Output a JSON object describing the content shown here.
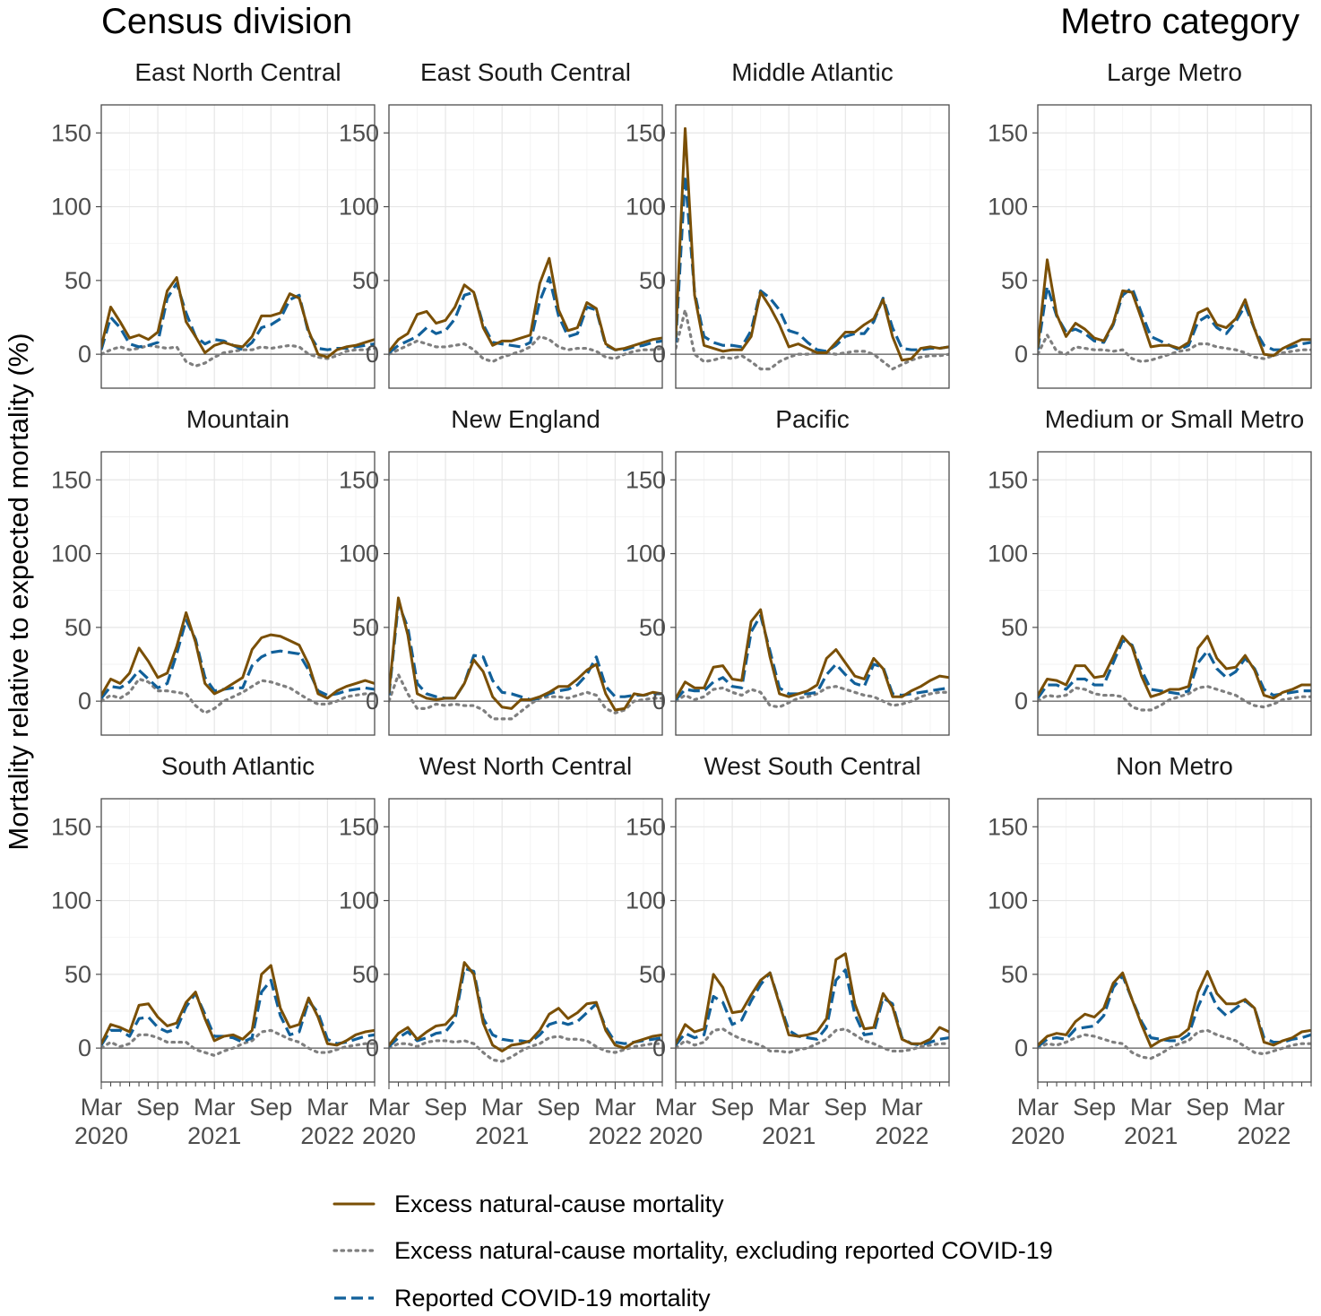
{
  "section_titles": {
    "left": "Census division",
    "right": "Metro category"
  },
  "y_axis_label": "Mortality relative to expected mortality (%)",
  "legend": [
    {
      "key": "excess",
      "label": "Excess natural-cause mortality"
    },
    {
      "key": "excl",
      "label": "Excess natural-cause mortality, excluding reported COVID-19"
    },
    {
      "key": "covid",
      "label": "Reported COVID-19 mortality"
    }
  ],
  "colors": {
    "excess": "#7a4f05",
    "excl": "#7f7f7f",
    "covid": "#11609a"
  },
  "chart_data": {
    "type": "line",
    "x_unit": "month",
    "x_start": "2020-03",
    "x_end": "2022-08",
    "x_ticks": [
      "Mar 2020",
      "Sep",
      "Mar 2021",
      "Sep",
      "Mar 2022"
    ],
    "x_tick_lines": [
      [
        "Mar",
        "2020"
      ],
      [
        "Sep",
        ""
      ],
      [
        "Mar",
        "2021"
      ],
      [
        "Sep",
        ""
      ],
      [
        "Mar",
        "2022"
      ]
    ],
    "ylim": [
      -23,
      169
    ],
    "y_ticks": [
      0,
      50,
      100,
      150
    ],
    "series_names": [
      "Excess natural-cause mortality",
      "Excess natural-cause mortality, excluding reported COVID-19",
      "Reported COVID-19 mortality"
    ],
    "panels": [
      {
        "group": "Census division",
        "title": "East North Central",
        "excess": [
          5,
          32,
          22,
          11,
          13,
          10,
          15,
          43,
          52,
          22,
          12,
          1,
          6,
          8,
          6,
          5,
          12,
          26,
          26,
          28,
          41,
          38,
          16,
          0,
          -2,
          3,
          5,
          6,
          8,
          10
        ],
        "excl": [
          0,
          3,
          5,
          3,
          4,
          6,
          5,
          4,
          5,
          -5,
          -8,
          -6,
          -2,
          1,
          2,
          3,
          3,
          5,
          4,
          5,
          6,
          5,
          0,
          -2,
          -3,
          -1,
          2,
          3,
          3,
          4
        ],
        "covid": [
          3,
          25,
          18,
          7,
          5,
          6,
          8,
          38,
          48,
          28,
          12,
          7,
          10,
          9,
          6,
          3,
          8,
          18,
          20,
          24,
          37,
          40,
          14,
          4,
          3,
          4,
          4,
          5,
          6,
          7
        ]
      },
      {
        "group": "Census division",
        "title": "East South Central",
        "excess": [
          2,
          10,
          14,
          27,
          29,
          21,
          23,
          32,
          47,
          42,
          18,
          6,
          9,
          9,
          11,
          13,
          48,
          65,
          30,
          16,
          18,
          35,
          31,
          7,
          3,
          4,
          6,
          8,
          10,
          11
        ],
        "excl": [
          0,
          3,
          6,
          9,
          7,
          5,
          5,
          6,
          7,
          3,
          -3,
          -5,
          -2,
          0,
          2,
          5,
          12,
          10,
          5,
          3,
          4,
          4,
          2,
          -2,
          -3,
          0,
          2,
          3,
          3,
          4
        ],
        "covid": [
          1,
          6,
          9,
          12,
          18,
          14,
          16,
          24,
          40,
          42,
          20,
          8,
          7,
          6,
          5,
          8,
          36,
          52,
          26,
          12,
          14,
          32,
          30,
          6,
          3,
          3,
          5,
          6,
          8,
          9
        ]
      },
      {
        "group": "Census division",
        "title": "Middle Atlantic",
        "excess": [
          12,
          153,
          40,
          6,
          4,
          2,
          3,
          3,
          12,
          42,
          32,
          20,
          5,
          7,
          4,
          1,
          1,
          8,
          15,
          15,
          20,
          24,
          37,
          12,
          -4,
          -3,
          4,
          5,
          4,
          5
        ],
        "excl": [
          4,
          30,
          0,
          -5,
          -4,
          -2,
          -3,
          -1,
          -5,
          -10,
          -10,
          -5,
          -2,
          0,
          0,
          2,
          1,
          0,
          1,
          2,
          2,
          0,
          -5,
          -10,
          -7,
          -4,
          -2,
          -1,
          -1,
          0
        ],
        "covid": [
          8,
          121,
          42,
          12,
          8,
          6,
          6,
          5,
          16,
          43,
          38,
          30,
          16,
          14,
          8,
          3,
          2,
          6,
          12,
          14,
          14,
          22,
          38,
          18,
          4,
          3,
          3,
          4,
          4,
          5
        ]
      },
      {
        "group": "Metro category",
        "title": "Large Metro",
        "excess": [
          5,
          64,
          27,
          12,
          21,
          17,
          11,
          9,
          21,
          43,
          42,
          24,
          5,
          6,
          6,
          4,
          8,
          28,
          31,
          20,
          18,
          24,
          37,
          17,
          0,
          -1,
          4,
          7,
          10,
          10
        ],
        "excl": [
          0,
          13,
          2,
          0,
          5,
          4,
          3,
          3,
          2,
          3,
          -3,
          -5,
          -4,
          -2,
          0,
          2,
          3,
          7,
          7,
          5,
          4,
          3,
          1,
          -2,
          -3,
          -1,
          1,
          2,
          3,
          3
        ],
        "covid": [
          3,
          46,
          26,
          15,
          17,
          14,
          9,
          8,
          20,
          40,
          45,
          28,
          12,
          9,
          6,
          3,
          6,
          22,
          26,
          18,
          14,
          22,
          33,
          17,
          6,
          3,
          3,
          5,
          7,
          8
        ]
      },
      {
        "group": "Census division",
        "title": "Mountain",
        "excess": [
          4,
          15,
          12,
          19,
          36,
          27,
          16,
          19,
          37,
          60,
          40,
          12,
          5,
          8,
          12,
          16,
          35,
          43,
          45,
          44,
          41,
          38,
          25,
          5,
          2,
          7,
          10,
          12,
          14,
          12
        ],
        "excl": [
          0,
          4,
          2,
          6,
          15,
          13,
          7,
          7,
          6,
          5,
          -3,
          -8,
          -5,
          0,
          3,
          6,
          10,
          14,
          13,
          11,
          9,
          5,
          1,
          -2,
          -2,
          0,
          3,
          4,
          5,
          5
        ],
        "covid": [
          2,
          10,
          9,
          13,
          21,
          15,
          9,
          12,
          32,
          55,
          42,
          16,
          7,
          8,
          9,
          9,
          24,
          30,
          33,
          34,
          33,
          32,
          21,
          7,
          4,
          5,
          7,
          8,
          9,
          8
        ]
      },
      {
        "group": "Census division",
        "title": "New England",
        "excess": [
          6,
          70,
          45,
          5,
          2,
          1,
          2,
          2,
          12,
          28,
          20,
          3,
          -4,
          -5,
          1,
          1,
          3,
          6,
          10,
          10,
          15,
          21,
          25,
          5,
          -6,
          -5,
          5,
          4,
          6,
          5
        ],
        "excl": [
          0,
          18,
          5,
          -5,
          -5,
          -2,
          -3,
          -2,
          -3,
          -3,
          -6,
          -12,
          -12,
          -12,
          -7,
          -2,
          2,
          3,
          3,
          2,
          4,
          6,
          4,
          -5,
          -8,
          -6,
          0,
          1,
          2,
          2
        ],
        "covid": [
          4,
          66,
          50,
          12,
          5,
          3,
          2,
          2,
          12,
          31,
          30,
          14,
          6,
          5,
          3,
          1,
          2,
          5,
          7,
          8,
          11,
          18,
          30,
          10,
          3,
          3,
          4,
          4,
          5,
          5
        ]
      },
      {
        "group": "Census division",
        "title": "Pacific",
        "excess": [
          2,
          13,
          9,
          9,
          23,
          24,
          15,
          14,
          54,
          62,
          30,
          5,
          3,
          5,
          7,
          11,
          29,
          35,
          26,
          17,
          15,
          29,
          22,
          3,
          3,
          7,
          10,
          14,
          17,
          16
        ],
        "excl": [
          0,
          4,
          1,
          3,
          8,
          9,
          6,
          4,
          8,
          6,
          -3,
          -4,
          -1,
          2,
          3,
          5,
          9,
          10,
          8,
          6,
          4,
          3,
          0,
          -3,
          -2,
          0,
          3,
          5,
          6,
          6
        ],
        "covid": [
          1,
          8,
          7,
          7,
          13,
          16,
          10,
          9,
          47,
          58,
          34,
          9,
          5,
          5,
          5,
          6,
          18,
          25,
          18,
          12,
          10,
          25,
          23,
          5,
          4,
          5,
          6,
          7,
          8,
          9
        ]
      },
      {
        "group": "Metro category",
        "title": "Medium or Small Metro",
        "excess": [
          4,
          15,
          14,
          11,
          24,
          24,
          16,
          17,
          30,
          44,
          37,
          17,
          3,
          5,
          8,
          8,
          10,
          36,
          44,
          29,
          22,
          23,
          31,
          21,
          4,
          2,
          6,
          8,
          11,
          11
        ],
        "excl": [
          0,
          4,
          3,
          4,
          9,
          8,
          5,
          4,
          4,
          3,
          -4,
          -6,
          -6,
          -3,
          1,
          3,
          5,
          9,
          10,
          8,
          6,
          4,
          0,
          -3,
          -4,
          -2,
          1,
          2,
          3,
          3
        ],
        "covid": [
          2,
          11,
          11,
          8,
          15,
          15,
          11,
          11,
          26,
          41,
          38,
          21,
          8,
          7,
          6,
          5,
          7,
          26,
          34,
          22,
          16,
          20,
          29,
          22,
          8,
          4,
          5,
          6,
          7,
          7
        ]
      },
      {
        "group": "Census division",
        "title": "South Atlantic",
        "excess": [
          3,
          16,
          14,
          11,
          29,
          30,
          21,
          15,
          17,
          31,
          38,
          20,
          5,
          8,
          9,
          6,
          12,
          50,
          56,
          27,
          14,
          16,
          34,
          21,
          3,
          2,
          5,
          9,
          11,
          12
        ],
        "excl": [
          0,
          4,
          1,
          3,
          9,
          9,
          7,
          4,
          4,
          4,
          -1,
          -3,
          -5,
          -2,
          0,
          3,
          5,
          11,
          12,
          9,
          6,
          4,
          0,
          -3,
          -3,
          -1,
          1,
          2,
          3,
          3
        ],
        "covid": [
          2,
          12,
          12,
          8,
          20,
          21,
          14,
          11,
          13,
          28,
          37,
          23,
          8,
          8,
          7,
          4,
          7,
          38,
          46,
          22,
          9,
          11,
          32,
          24,
          6,
          3,
          4,
          6,
          8,
          9
        ]
      },
      {
        "group": "Census division",
        "title": "West North Central",
        "excess": [
          2,
          10,
          14,
          6,
          11,
          15,
          16,
          23,
          58,
          50,
          17,
          2,
          -2,
          2,
          3,
          5,
          12,
          23,
          27,
          20,
          24,
          30,
          31,
          12,
          2,
          0,
          4,
          6,
          8,
          9
        ],
        "excl": [
          0,
          3,
          3,
          1,
          4,
          5,
          5,
          4,
          5,
          3,
          -3,
          -8,
          -9,
          -6,
          -2,
          1,
          3,
          7,
          8,
          6,
          6,
          5,
          1,
          -2,
          -3,
          -1,
          1,
          2,
          3,
          3
        ],
        "covid": [
          1,
          7,
          11,
          5,
          7,
          10,
          11,
          19,
          54,
          52,
          20,
          9,
          6,
          5,
          5,
          4,
          9,
          16,
          18,
          16,
          18,
          24,
          30,
          14,
          4,
          3,
          4,
          5,
          6,
          7
        ]
      },
      {
        "group": "Census division",
        "title": "West South Central",
        "excess": [
          3,
          16,
          11,
          13,
          50,
          41,
          24,
          25,
          36,
          46,
          51,
          30,
          9,
          8,
          9,
          11,
          20,
          60,
          64,
          30,
          13,
          14,
          37,
          28,
          6,
          3,
          3,
          6,
          14,
          11
        ],
        "excl": [
          0,
          5,
          2,
          4,
          12,
          13,
          9,
          6,
          4,
          2,
          -2,
          -2,
          -3,
          -1,
          0,
          3,
          6,
          12,
          13,
          9,
          5,
          3,
          0,
          -2,
          -2,
          -1,
          1,
          2,
          3,
          3
        ],
        "covid": [
          2,
          10,
          7,
          9,
          35,
          31,
          16,
          19,
          32,
          43,
          51,
          31,
          12,
          8,
          7,
          6,
          14,
          46,
          53,
          23,
          9,
          10,
          34,
          30,
          7,
          3,
          2,
          4,
          6,
          7
        ]
      },
      {
        "group": "Metro category",
        "title": "Non Metro",
        "excess": [
          2,
          8,
          10,
          9,
          18,
          23,
          21,
          27,
          44,
          51,
          33,
          16,
          1,
          5,
          7,
          8,
          13,
          38,
          52,
          37,
          30,
          30,
          33,
          27,
          4,
          2,
          5,
          7,
          11,
          12
        ],
        "excl": [
          0,
          3,
          2,
          4,
          7,
          9,
          8,
          6,
          4,
          3,
          -3,
          -6,
          -7,
          -4,
          0,
          3,
          5,
          11,
          12,
          9,
          7,
          5,
          1,
          -3,
          -4,
          -2,
          0,
          2,
          3,
          3
        ],
        "covid": [
          1,
          6,
          7,
          6,
          13,
          14,
          15,
          22,
          41,
          49,
          33,
          18,
          7,
          6,
          5,
          5,
          9,
          28,
          42,
          28,
          22,
          27,
          32,
          27,
          7,
          4,
          4,
          6,
          7,
          9
        ]
      }
    ]
  }
}
